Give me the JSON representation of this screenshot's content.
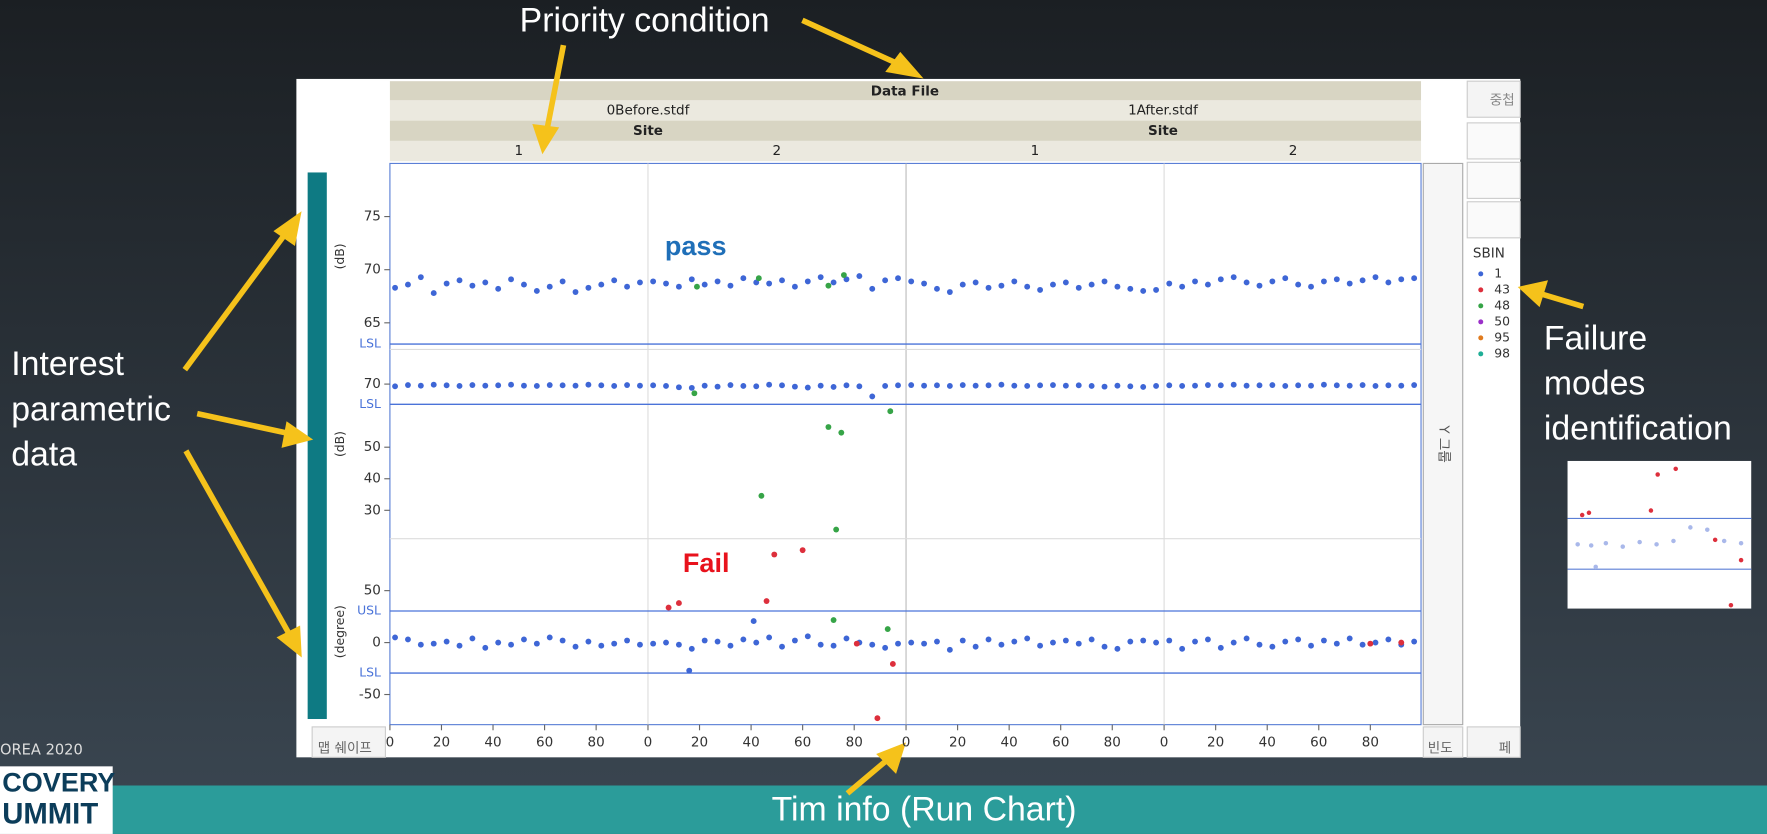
{
  "slide": {
    "callout_top": "Priority condition",
    "callout_left": [
      "Interest",
      "parametric",
      "data"
    ],
    "callout_right": [
      "Failure",
      "modes",
      "identification"
    ],
    "callout_bottom": "Tim info (Run Chart)",
    "footer_event": "OREA 2020",
    "logo": [
      "COVERY",
      "UMMIT"
    ],
    "buttons": {
      "overlay": "중첩",
      "map_shape": "맵 쉐이프",
      "frequency": "빈도",
      "y_group": "Y 그룹",
      "page": "페"
    }
  },
  "chart_data": {
    "type": "scatter",
    "header": {
      "title": "Data File",
      "files": [
        "0Before.stdf",
        "1After.stdf"
      ],
      "group": "Site",
      "sites": [
        "1",
        "2",
        "1",
        "2"
      ]
    },
    "annotations": [
      "pass",
      "Fail"
    ],
    "x": [
      2,
      7,
      12,
      17,
      22,
      27,
      32,
      37,
      42,
      47,
      52,
      57,
      62,
      67,
      72,
      77,
      82,
      87,
      92,
      97
    ],
    "xlim": [
      0,
      100
    ],
    "xticks": [
      0,
      20,
      40,
      60,
      80
    ],
    "legend_title": "SBIN",
    "legend": [
      {
        "name": "1",
        "color": "#3e66d6"
      },
      {
        "name": "43",
        "color": "#dd2f3c"
      },
      {
        "name": "48",
        "color": "#36a447"
      },
      {
        "name": "50",
        "color": "#9b30c9"
      },
      {
        "name": "95",
        "color": "#e07b1f"
      },
      {
        "name": "98",
        "color": "#1fae96"
      }
    ],
    "panels": [
      {
        "axis_label": "(dB)",
        "ylim": [
          62.5,
          80
        ],
        "yticks": [
          65,
          70,
          75
        ],
        "limits": [
          {
            "label": "LSL",
            "value": 63
          }
        ],
        "values": [
          [
            68.3,
            68.6,
            69.3,
            67.8,
            68.7,
            69.0,
            68.5,
            68.8,
            68.2,
            69.1,
            68.6,
            68.0,
            68.4,
            68.9,
            67.9,
            68.3,
            68.6,
            69.0,
            68.4,
            68.8
          ],
          [
            68.9,
            68.7,
            68.4,
            69.1,
            68.6,
            68.9,
            68.5,
            69.2,
            68.8,
            68.7,
            69.0,
            68.4,
            68.9,
            69.3,
            68.8,
            69.1,
            69.4,
            68.2,
            69.0,
            69.2
          ],
          [
            68.9,
            68.7,
            68.2,
            67.9,
            68.6,
            68.8,
            68.3,
            68.5,
            68.9,
            68.4,
            68.1,
            68.6,
            68.8,
            68.3,
            68.6,
            68.9,
            68.4,
            68.2,
            68.0,
            68.1
          ],
          [
            68.7,
            68.4,
            68.9,
            68.6,
            69.1,
            69.3,
            68.8,
            68.5,
            68.9,
            69.2,
            68.6,
            68.4,
            68.9,
            69.1,
            68.7,
            69.0,
            69.3,
            68.8,
            69.1,
            69.2
          ]
        ]
      },
      {
        "axis_label": "(dB)",
        "ylim": [
          21,
          81
        ],
        "yticks": [
          30,
          40,
          50,
          70
        ],
        "limits": [
          {
            "label": "LSL",
            "value": 63.6
          }
        ],
        "values": [
          [
            69.3,
            69.7,
            69.5,
            69.8,
            69.6,
            69.4,
            69.7,
            69.5,
            69.6,
            69.8,
            69.5,
            69.4,
            69.7,
            69.6,
            69.5,
            69.8,
            69.6,
            69.4,
            69.7,
            69.5
          ],
          [
            69.6,
            69.4,
            69.0,
            68.8,
            69.5,
            69.2,
            69.7,
            69.4,
            69.3,
            69.8,
            69.6,
            69.2,
            68.9,
            69.5,
            69.1,
            69.6,
            69.3,
            66.1,
            69.4,
            69.6
          ],
          [
            69.7,
            69.5,
            69.6,
            69.4,
            69.7,
            69.5,
            69.6,
            69.8,
            69.5,
            69.4,
            69.6,
            69.7,
            69.5,
            69.6,
            69.4,
            69.2,
            69.5,
            69.3,
            69.1,
            69.4
          ],
          [
            69.6,
            69.4,
            69.5,
            69.7,
            69.6,
            69.8,
            69.5,
            69.6,
            69.7,
            69.4,
            69.6,
            69.5,
            69.8,
            69.6,
            69.5,
            69.7,
            69.4,
            69.6,
            69.5,
            69.7
          ]
        ]
      },
      {
        "axis_label": "(degree)",
        "ylim": [
          -79,
          100
        ],
        "yticks": [
          -50,
          0,
          50
        ],
        "limits": [
          {
            "label": "USL",
            "value": 30.4
          },
          {
            "label": "LSL",
            "value": -29.3
          }
        ],
        "values": [
          [
            5,
            3,
            -2,
            -1,
            1,
            -3,
            4,
            -5,
            0,
            -2,
            3,
            -1,
            5,
            2,
            -4,
            1,
            -3,
            -1,
            2,
            -2
          ],
          [
            -1,
            0,
            -2,
            -6,
            2,
            1,
            -3,
            3,
            0,
            5,
            -4,
            2,
            6,
            -2,
            -3,
            4,
            0,
            -2,
            -5,
            -1
          ],
          [
            0,
            -1,
            1,
            -7,
            2,
            -4,
            3,
            -2,
            1,
            4,
            -3,
            0,
            2,
            -1,
            3,
            -4,
            -6,
            1,
            2,
            0
          ],
          [
            2,
            -6,
            1,
            3,
            -5,
            0,
            4,
            -2,
            -4,
            1,
            3,
            -3,
            2,
            -1,
            4,
            -2,
            0,
            3,
            -2,
            1
          ]
        ]
      }
    ],
    "points": [
      {
        "panel": 0,
        "col": 1,
        "x": 19,
        "y": 68.4,
        "sbin": "48"
      },
      {
        "panel": 0,
        "col": 1,
        "x": 43,
        "y": 69.2,
        "sbin": "48"
      },
      {
        "panel": 0,
        "col": 1,
        "x": 70,
        "y": 68.5,
        "sbin": "48"
      },
      {
        "panel": 0,
        "col": 1,
        "x": 76,
        "y": 69.5,
        "sbin": "48"
      },
      {
        "panel": 1,
        "col": 1,
        "x": 18,
        "y": 67.1,
        "sbin": "48"
      },
      {
        "panel": 1,
        "col": 1,
        "x": 44,
        "y": 34.6,
        "sbin": "48"
      },
      {
        "panel": 1,
        "col": 1,
        "x": 70,
        "y": 56.4,
        "sbin": "48"
      },
      {
        "panel": 1,
        "col": 1,
        "x": 75,
        "y": 54.6,
        "sbin": "48"
      },
      {
        "panel": 1,
        "col": 1,
        "x": 94,
        "y": 61.4,
        "sbin": "48"
      },
      {
        "panel": 1,
        "col": 1,
        "x": 73,
        "y": 23.9,
        "sbin": "48"
      },
      {
        "panel": 2,
        "col": 1,
        "x": 8,
        "y": 33.7,
        "sbin": "43"
      },
      {
        "panel": 2,
        "col": 1,
        "x": 12,
        "y": 38,
        "sbin": "43"
      },
      {
        "panel": 2,
        "col": 1,
        "x": 49,
        "y": 84.8,
        "sbin": "43"
      },
      {
        "panel": 2,
        "col": 1,
        "x": 60,
        "y": 89,
        "sbin": "43"
      },
      {
        "panel": 2,
        "col": 1,
        "x": 46,
        "y": 40,
        "sbin": "43"
      },
      {
        "panel": 2,
        "col": 1,
        "x": 41,
        "y": 20.7,
        "sbin": "1"
      },
      {
        "panel": 2,
        "col": 1,
        "x": 72,
        "y": 21.7,
        "sbin": "48"
      },
      {
        "panel": 2,
        "col": 1,
        "x": 93,
        "y": 13,
        "sbin": "48"
      },
      {
        "panel": 2,
        "col": 1,
        "x": 95,
        "y": -20.6,
        "sbin": "43"
      },
      {
        "panel": 2,
        "col": 1,
        "x": 89,
        "y": -72.8,
        "sbin": "43"
      },
      {
        "panel": 2,
        "col": 1,
        "x": 16,
        "y": -27,
        "sbin": "1"
      },
      {
        "panel": 2,
        "col": 1,
        "x": 81,
        "y": -1,
        "sbin": "43"
      },
      {
        "panel": 2,
        "col": 3,
        "x": 80,
        "y": -1,
        "sbin": "43"
      },
      {
        "panel": 2,
        "col": 3,
        "x": 92,
        "y": 0,
        "sbin": "43"
      }
    ]
  }
}
